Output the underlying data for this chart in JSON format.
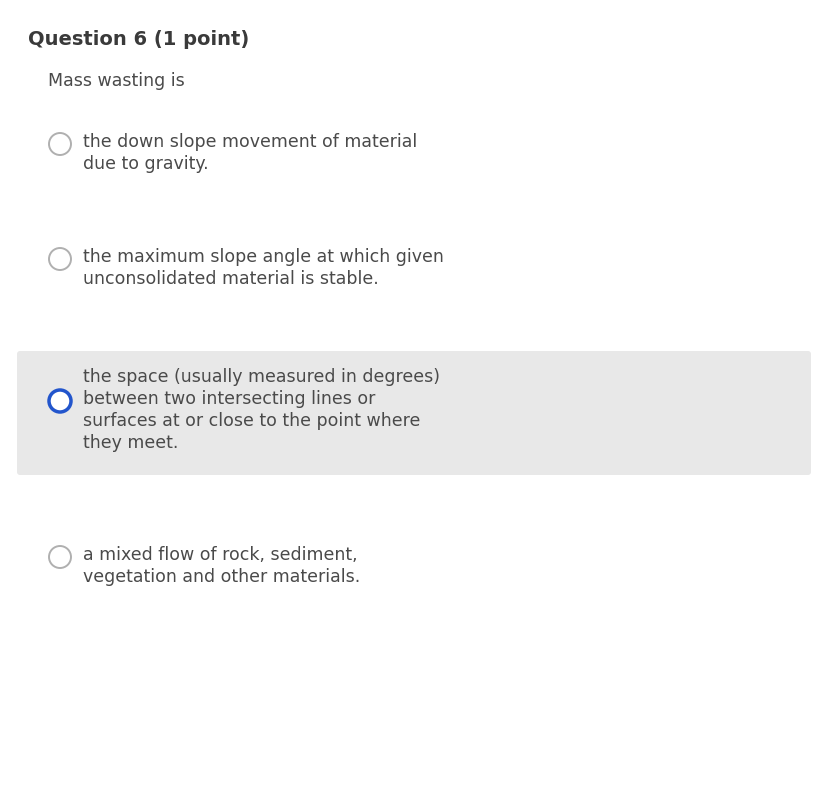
{
  "title": "Question 6 (1 point)",
  "subtitle": "Mass wasting is",
  "options": [
    {
      "lines": [
        "the down slope movement of material",
        "due to gravity."
      ],
      "selected": false,
      "highlighted": false
    },
    {
      "lines": [
        "the maximum slope angle at which given",
        "unconsolidated material is stable."
      ],
      "selected": false,
      "highlighted": false
    },
    {
      "lines": [
        "the space (usually measured in degrees)",
        "between two intersecting lines or",
        "surfaces at or close to the point where",
        "they meet."
      ],
      "selected": true,
      "highlighted": true
    },
    {
      "lines": [
        "a mixed flow of rock, sediment,",
        "vegetation and other materials."
      ],
      "selected": false,
      "highlighted": false
    }
  ],
  "bg_color": "#ffffff",
  "highlight_color": "#e8e8e8",
  "title_color": "#3a3a3a",
  "text_color": "#4a4a4a",
  "circle_unsel_edge": "#b0b0b0",
  "circle_sel_edge": "#2255cc",
  "circle_fill": "#ffffff",
  "title_fontsize": 14,
  "subtitle_fontsize": 12.5,
  "option_fontsize": 12.5,
  "fig_width": 8.28,
  "fig_height": 8.02,
  "dpi": 100
}
